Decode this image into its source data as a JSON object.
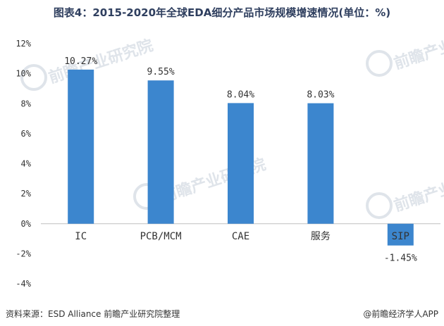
{
  "title": "图表4：2015-2020年全球EDA细分产品市场规模增速情况(单位：%)",
  "source": "资料来源：ESD Alliance 前瞻产业研究院整理",
  "credit": "@前瞻经济学人APP",
  "watermark": "前瞻产业研究院",
  "colors": {
    "bar": "#3c86ce",
    "axis": "#bfbfbf",
    "text": "#333333",
    "title": "#2f3f5f"
  },
  "chart_data": {
    "type": "bar",
    "title": "图表4：2015-2020年全球EDA细分产品市场规模增速情况(单位：%)",
    "categories": [
      "IC",
      "PCB/MCM",
      "CAE",
      "服务",
      "SIP"
    ],
    "values": [
      10.27,
      9.55,
      8.04,
      8.03,
      -1.45
    ],
    "data_labels": [
      "10.27%",
      "9.55%",
      "8.04%",
      "8.03%",
      "-1.45%"
    ],
    "y_ticks": [
      12,
      10,
      8,
      6,
      4,
      2,
      0,
      -2,
      -4
    ],
    "y_tick_labels": [
      "12%",
      "10%",
      "8%",
      "6%",
      "4%",
      "2%",
      "0%",
      "-2%",
      "-4%"
    ],
    "ylim": [
      -4,
      12
    ],
    "xlabel": "",
    "ylabel": "",
    "grid": false,
    "legend": "none"
  }
}
